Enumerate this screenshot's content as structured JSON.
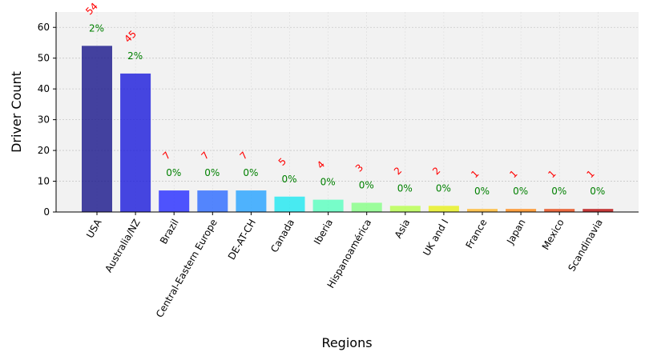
{
  "chart_data": {
    "type": "bar",
    "title": "",
    "xlabel": "Regions",
    "ylabel": "Driver Count",
    "ylim": [
      0,
      65
    ],
    "yticks": [
      0,
      10,
      20,
      30,
      40,
      50,
      60
    ],
    "grid": true,
    "categories": [
      "USA",
      "Australia/NZ",
      "Brazil",
      "Central-Eastern Europe",
      "DE-AT-CH",
      "Canada",
      "Iberia",
      "Hispanoamérica",
      "Asia",
      "UK and I",
      "France",
      "Japan",
      "Mexico",
      "Scandinavia"
    ],
    "values": [
      54,
      45,
      7,
      7,
      7,
      5,
      4,
      3,
      2,
      2,
      1,
      1,
      1,
      1
    ],
    "percent_labels": [
      "2%",
      "2%",
      "0%",
      "0%",
      "0%",
      "0%",
      "0%",
      "0%",
      "0%",
      "0%",
      "0%",
      "0%",
      "0%",
      "0%"
    ],
    "colors": [
      "#1c1a8c",
      "#1f1fdc",
      "#2a30ff",
      "#2f6cff",
      "#2aa4ff",
      "#22e8f0",
      "#5cffc0",
      "#88ff88",
      "#b8ff50",
      "#e8f020",
      "#ffb830",
      "#ff8c1a",
      "#e84a18",
      "#bb1010"
    ],
    "count_label_color": "#ff0000",
    "percent_label_color": "#008000",
    "plot_background": "#f2f2f2"
  }
}
